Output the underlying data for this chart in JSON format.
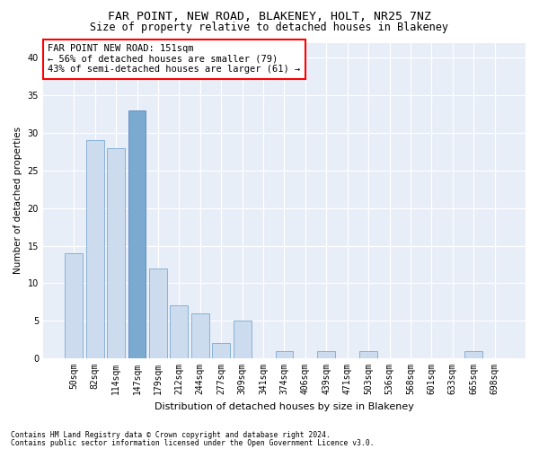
{
  "title1": "FAR POINT, NEW ROAD, BLAKENEY, HOLT, NR25 7NZ",
  "title2": "Size of property relative to detached houses in Blakeney",
  "xlabel": "Distribution of detached houses by size in Blakeney",
  "ylabel": "Number of detached properties",
  "bar_labels": [
    "50sqm",
    "82sqm",
    "114sqm",
    "147sqm",
    "179sqm",
    "212sqm",
    "244sqm",
    "277sqm",
    "309sqm",
    "341sqm",
    "374sqm",
    "406sqm",
    "439sqm",
    "471sqm",
    "503sqm",
    "536sqm",
    "568sqm",
    "601sqm",
    "633sqm",
    "665sqm",
    "698sqm"
  ],
  "bar_values": [
    14,
    29,
    28,
    33,
    12,
    7,
    6,
    2,
    5,
    0,
    1,
    0,
    1,
    0,
    1,
    0,
    0,
    0,
    0,
    1,
    0
  ],
  "bar_color": "#ccdcee",
  "bar_edge_color": "#7aaad0",
  "highlight_index": 3,
  "highlight_color": "#7aaad0",
  "highlight_edge_color": "#5588bb",
  "annotation_text_line1": "FAR POINT NEW ROAD: 151sqm",
  "annotation_text_line2": "← 56% of detached houses are smaller (79)",
  "annotation_text_line3": "43% of semi-detached houses are larger (61) →",
  "ylim": [
    0,
    42
  ],
  "yticks": [
    0,
    5,
    10,
    15,
    20,
    25,
    30,
    35,
    40
  ],
  "background_color": "#e8eef8",
  "footnote1": "Contains HM Land Registry data © Crown copyright and database right 2024.",
  "footnote2": "Contains public sector information licensed under the Open Government Licence v3.0.",
  "title1_fontsize": 9.5,
  "title2_fontsize": 8.5,
  "xlabel_fontsize": 8,
  "ylabel_fontsize": 7.5,
  "tick_fontsize": 7,
  "annotation_fontsize": 7.5,
  "footnote_fontsize": 5.8
}
